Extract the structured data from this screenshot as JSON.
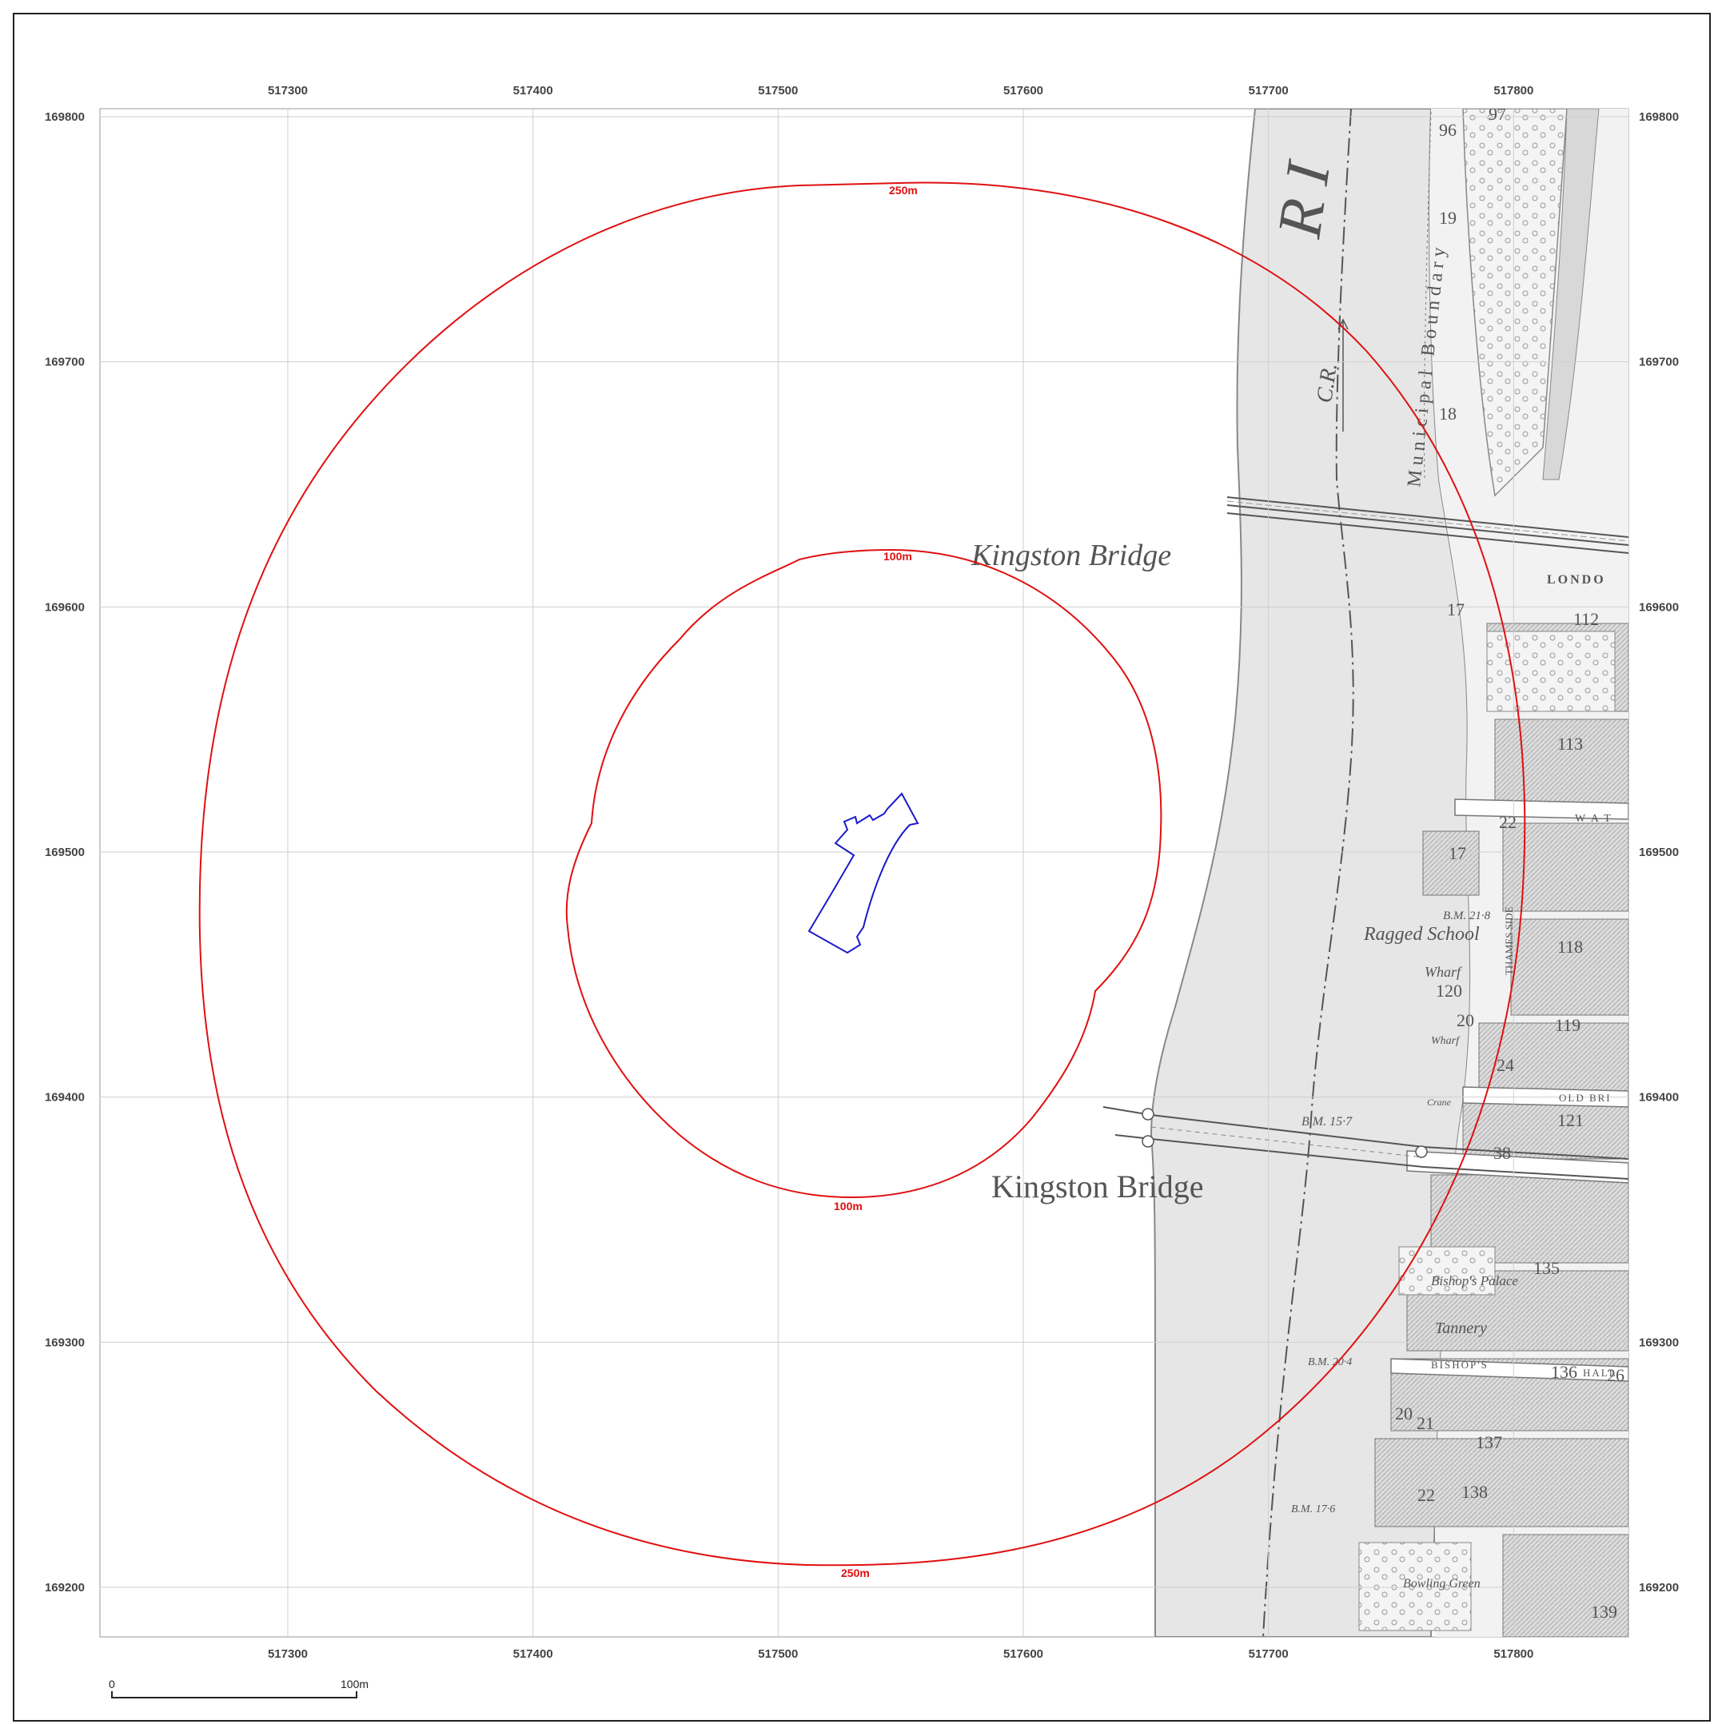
{
  "map": {
    "easting_ticks": [
      "517300",
      "517400",
      "517500",
      "517600",
      "517700",
      "517800"
    ],
    "northing_ticks": [
      "169800",
      "169700",
      "169600",
      "169500",
      "169400",
      "169300",
      "169200"
    ],
    "buffers": [
      {
        "label": "250m",
        "color": "#e01010"
      },
      {
        "label": "100m",
        "color": "#e01010"
      }
    ],
    "site_boundary_color": "#1a1acc",
    "historic_labels": {
      "kingston_bridge_upper": "Kingston Bridge",
      "kingston_bridge_lower": "Kingston Bridge",
      "ragged_school": "Ragged School",
      "wharf_1": "Wharf",
      "wharf_2": "Wharf",
      "municipal_boundary": "Municipal Boundary",
      "river_letters": "R I",
      "cr": "C.R.",
      "bm_218": "B.M. 21·8",
      "bm_157": "B.M. 15·7",
      "bm_204": "B.M. 20·4",
      "bm_176": "B.M. 17·6",
      "thames_side": "THAMES SIDE",
      "london": "LONDO",
      "wat": "W A T",
      "old_bri": "OLD BRI",
      "bishops_hall": "BISHOP'S",
      "hall": "HALL",
      "bishops_palace": "Bishop's Palace",
      "tannery": "Tannery",
      "crane": "Crane",
      "bowling_green": "Bowling Green",
      "parcel_numbers": [
        "96",
        "97",
        "19",
        "18",
        "17",
        "112",
        "113",
        "22",
        "17",
        "118",
        "120",
        "20",
        "119",
        "24",
        "121",
        "38",
        "135",
        "136",
        "26",
        "137",
        "20",
        "21",
        "22",
        "138",
        "139"
      ]
    }
  },
  "scale_bar": {
    "start": "0",
    "end": "100m"
  }
}
